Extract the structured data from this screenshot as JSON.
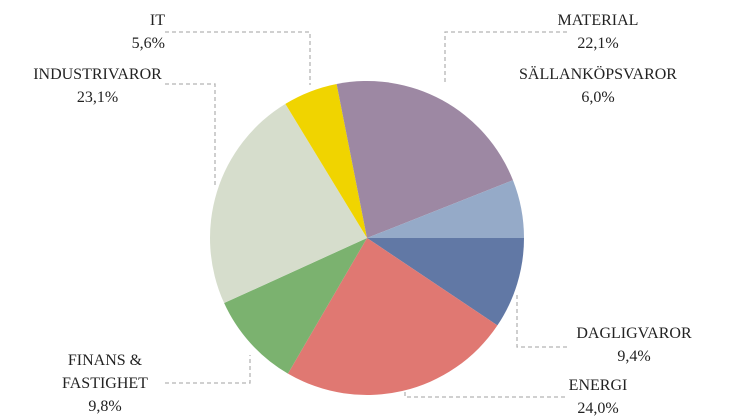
{
  "chart_data": {
    "type": "pie",
    "categories": [
      "DAGLIGVAROR",
      "ENERGI",
      "FINANS & FASTIGHET",
      "INDUSTRIVAROR",
      "IT",
      "MATERIAL",
      "SÄLLANKÖPSVAROR"
    ],
    "values": [
      9.4,
      24.0,
      9.8,
      23.1,
      5.6,
      22.1,
      6.0
    ],
    "value_labels": [
      "9,4%",
      "24,0%",
      "9,8%",
      "23,1%",
      "5,6%",
      "22,1%",
      "6,0%"
    ],
    "colors": [
      "#6178a5",
      "#e07872",
      "#7bb26f",
      "#d6ddcc",
      "#f0d400",
      "#9d88a3",
      "#95aac8"
    ],
    "start_angle": 0,
    "direction": "clockwise"
  }
}
